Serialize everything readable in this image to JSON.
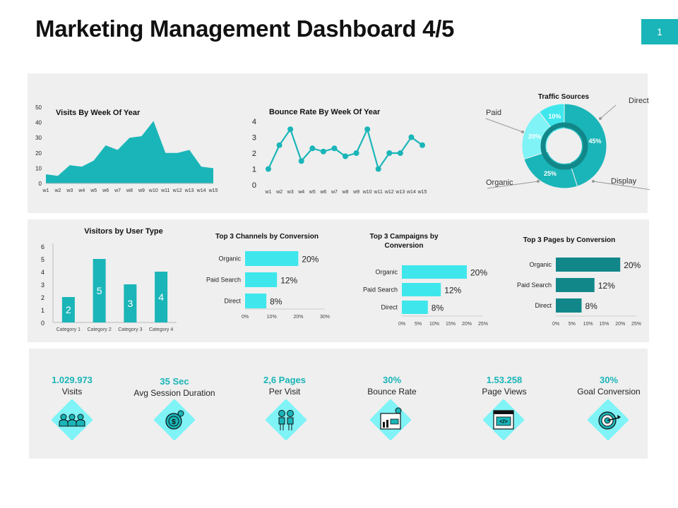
{
  "header": {
    "title": "Marketing Management Dashboard 4/5",
    "page_number": "1"
  },
  "colors": {
    "teal": "#1ab5b8",
    "teal_dark": "#12878a",
    "cyan": "#3fe7ec",
    "cyan_light": "#7ff3f6",
    "panel": "#efefef"
  },
  "chart_data": [
    {
      "id": "visits",
      "type": "area",
      "title": "Visits By Week Of Year",
      "categories": [
        "w1",
        "w2",
        "w3",
        "w4",
        "w5",
        "w6",
        "w7",
        "w8",
        "w9",
        "w10",
        "w11",
        "w12",
        "w13",
        "w14",
        "w15"
      ],
      "series": [
        {
          "values": [
            6,
            5,
            12,
            11,
            15,
            25,
            22,
            30,
            31,
            41,
            20,
            20,
            22,
            11,
            10
          ]
        }
      ],
      "ylim": [
        0,
        50
      ],
      "yticks": [
        "0",
        "10",
        "20",
        "30",
        "40",
        "50"
      ]
    },
    {
      "id": "bounce",
      "type": "line",
      "title": "Bounce Rate By Week Of Year",
      "categories": [
        "w1",
        "w2",
        "w3",
        "w4",
        "w5",
        "w6",
        "w7",
        "w8",
        "w9",
        "w10",
        "w11",
        "w12",
        "w13",
        "w14",
        "w15"
      ],
      "series": [
        {
          "values": [
            1.0,
            2.5,
            3.5,
            1.5,
            2.3,
            2.1,
            2.3,
            1.8,
            2.0,
            3.5,
            1.0,
            2.0,
            2.0,
            3.0,
            2.5
          ]
        }
      ],
      "ylim": [
        0,
        4
      ],
      "yticks": [
        "0",
        "1",
        "2",
        "3",
        "4"
      ]
    },
    {
      "id": "traffic",
      "type": "pie",
      "title": "Traffic Sources",
      "slices": [
        {
          "label": "Direct",
          "value": 45,
          "text": "45%"
        },
        {
          "label": "Display",
          "value": 25,
          "text": "25%"
        },
        {
          "label": "Organic",
          "value": 20,
          "text": "20%"
        },
        {
          "label": "Paid",
          "value": 10,
          "text": "10%"
        }
      ]
    },
    {
      "id": "visitors",
      "type": "bar",
      "title": "Visitors by User Type",
      "categories": [
        "Category 1",
        "Category 2",
        "Category 3",
        "Category 4"
      ],
      "values": [
        2,
        5,
        3,
        4
      ],
      "labels": [
        "2",
        "5",
        "3",
        "4"
      ],
      "ylim": [
        0,
        6
      ],
      "yticks": [
        "0",
        "1",
        "2",
        "3",
        "4",
        "5",
        "6"
      ]
    },
    {
      "id": "channels",
      "type": "bar",
      "title": "Top 3 Channels by Conversion",
      "categories": [
        "Organic",
        "Paid Search",
        "Direct"
      ],
      "values": [
        20,
        12,
        8
      ],
      "labels": [
        "20%",
        "12%",
        "8%"
      ],
      "xlim": [
        0,
        30
      ],
      "xticks": [
        "0%",
        "10%",
        "20%",
        "30%"
      ]
    },
    {
      "id": "campaigns",
      "type": "bar",
      "title": "Top 3 Campaigns by Conversion",
      "title_lines": [
        "Top 3 Campaigns by",
        "Conversion"
      ],
      "categories": [
        "Organic",
        "Paid Search",
        "Direct"
      ],
      "values": [
        20,
        12,
        8
      ],
      "labels": [
        "20%",
        "12%",
        "8%"
      ],
      "xlim": [
        0,
        25
      ],
      "xticks": [
        "0%",
        "5%",
        "10%",
        "15%",
        "20%",
        "25%"
      ]
    },
    {
      "id": "pages",
      "type": "bar",
      "title": "Top 3 Pages by Conversion",
      "categories": [
        "Organic",
        "Paid Search",
        "Direct"
      ],
      "values": [
        20,
        12,
        8
      ],
      "labels": [
        "20%",
        "12%",
        "8%"
      ],
      "xlim": [
        0,
        25
      ],
      "xticks": [
        "0%",
        "5%",
        "10%",
        "15%",
        "20%",
        "25%"
      ]
    }
  ],
  "kpis": [
    {
      "value": "1.029.973",
      "label": "Visits",
      "icon": "users-icon"
    },
    {
      "value": "35 Sec",
      "label": "Avg Session Duration",
      "icon": "dollar-gear-icon"
    },
    {
      "value": "2,6 Pages",
      "label": "Per Visit",
      "icon": "people-icon"
    },
    {
      "value": "30%",
      "label": "Bounce Rate",
      "icon": "analytics-board-icon"
    },
    {
      "value": "1.53.258",
      "label": "Page Views",
      "icon": "code-window-icon"
    },
    {
      "value": "30%",
      "label": "Goal Conversion",
      "icon": "target-icon"
    }
  ]
}
